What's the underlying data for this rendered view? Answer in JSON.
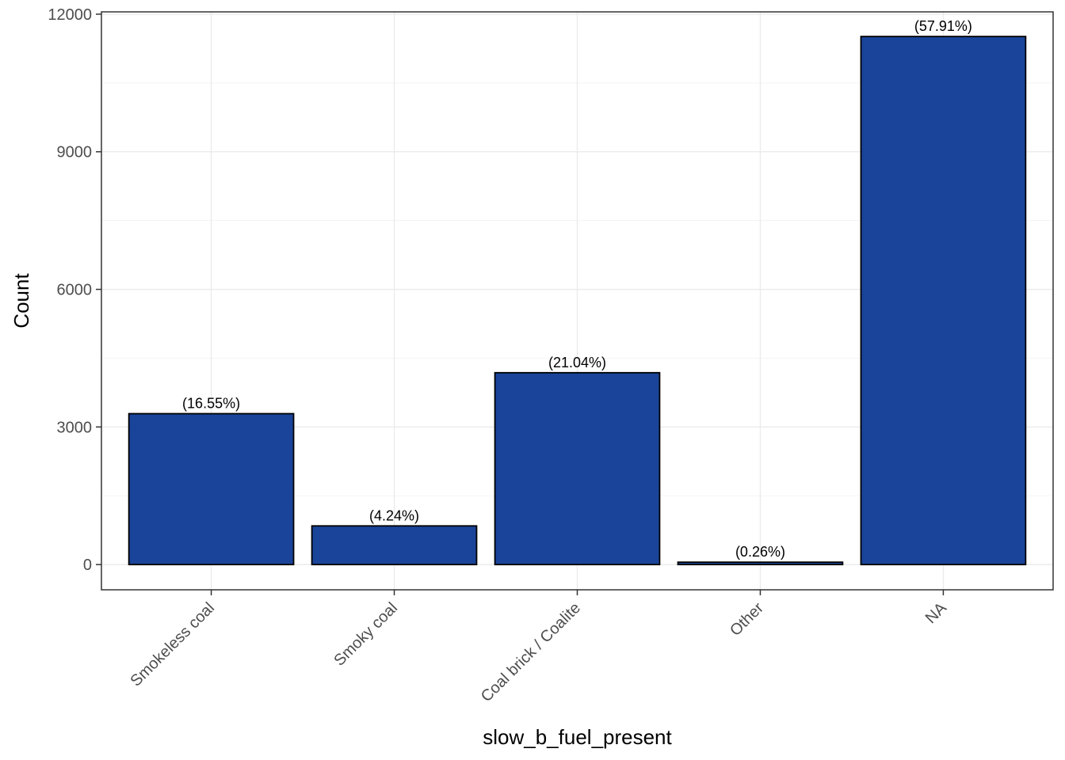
{
  "chart_data": {
    "type": "bar",
    "xlabel": "slow_b_fuel_present",
    "ylabel": "Count",
    "categories": [
      "Smokeless coal",
      "Smoky coal",
      "Coal brick / Coalite",
      "Other",
      "NA"
    ],
    "values": [
      3290,
      843,
      4183,
      52,
      11513
    ],
    "data_labels": [
      "(16.55%)",
      "(4.24%)",
      "(21.04%)",
      "(0.26%)",
      "(57.91%)"
    ],
    "y_ticks": [
      0,
      3000,
      6000,
      9000,
      12000
    ],
    "y_tick_labels": [
      "0",
      "3000",
      "6000",
      "9000",
      "12000"
    ],
    "ylim": [
      -550,
      12050
    ],
    "grid": true,
    "legend": "none",
    "bar_color": "#1a4499",
    "bar_outline": "#000000"
  }
}
